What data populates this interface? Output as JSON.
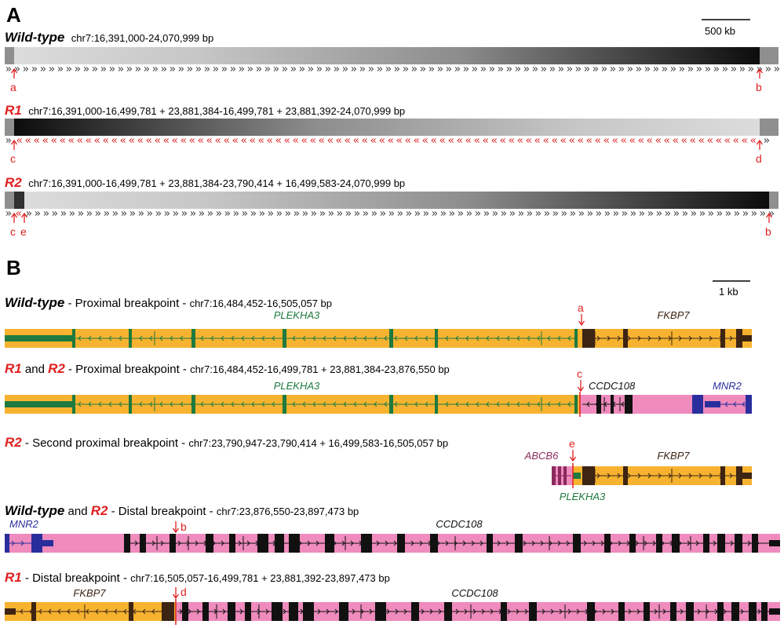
{
  "panel_a": {
    "label": "A",
    "scale_bar": "500 kb",
    "tracks": [
      {
        "name": "Wild-type",
        "coords": "chr7:16,391,000-24,070,999 bp",
        "markers": [
          {
            "letter": "a"
          },
          {
            "letter": "b"
          }
        ]
      },
      {
        "name": "R1",
        "coords": "chr7:16,391,000-16,499,781 + 23,881,384-16,499,781 + 23,881,392-24,070,999 bp",
        "markers": [
          {
            "letter": "c"
          },
          {
            "letter": "d"
          }
        ]
      },
      {
        "name": "R2",
        "coords": "chr7:16,391,000-16,499,781 + 23,881,384-23,790,414 + 16,499,583-24,070,999 bp",
        "markers": [
          {
            "letter": "c"
          },
          {
            "letter": "e"
          },
          {
            "letter": "b"
          }
        ]
      }
    ]
  },
  "panel_b": {
    "label": "B",
    "scale_bar": "1 kb",
    "tracks": [
      {
        "title_parts": [
          {
            "text": "Wild-type",
            "style": "bold-italic"
          },
          {
            "text": " - Proximal breakpoint - ",
            "style": "plain"
          },
          {
            "text": "chr7:16,484,452-16,505,057 bp",
            "style": "small"
          }
        ],
        "gene_labels": [
          "PLEKHA3",
          "FKBP7"
        ],
        "breakpoints": [
          "a"
        ]
      },
      {
        "title_parts": [
          {
            "text": "R1",
            "style": "red-bold-italic"
          },
          {
            "text": " and ",
            "style": "plain"
          },
          {
            "text": "R2",
            "style": "red-bold-italic"
          },
          {
            "text": " - Proximal breakpoint - ",
            "style": "plain"
          },
          {
            "text": "chr7:16,484,452-16,499,781 + 23,881,384-23,876,550 bp",
            "style": "small"
          }
        ],
        "gene_labels": [
          "PLEKHA3",
          "CCDC108",
          "MNR2"
        ],
        "breakpoints": [
          "c"
        ]
      },
      {
        "title_parts": [
          {
            "text": "R2",
            "style": "red-bold-italic"
          },
          {
            "text": " - Second proximal breakpoint - ",
            "style": "plain"
          },
          {
            "text": "chr7:23,790,947-23,790,414 + 16,499,583-16,505,057 bp",
            "style": "small"
          }
        ],
        "gene_labels": [
          "ABCB6",
          "FKBP7",
          "PLEKHA3"
        ],
        "breakpoints": [
          "e"
        ]
      },
      {
        "title_parts": [
          {
            "text": "Wild-type",
            "style": "bold-italic"
          },
          {
            "text": " and ",
            "style": "plain"
          },
          {
            "text": "R2",
            "style": "red-bold-italic"
          },
          {
            "text": " - Distal breakpoint - ",
            "style": "plain"
          },
          {
            "text": "chr7:23,876,550-23,897,473 bp",
            "style": "small"
          }
        ],
        "gene_labels": [
          "MNR2",
          "CCDC108"
        ],
        "breakpoints": [
          "b"
        ]
      },
      {
        "title_parts": [
          {
            "text": "R1",
            "style": "red-bold-italic"
          },
          {
            "text": " - Distal breakpoint - ",
            "style": "plain"
          },
          {
            "text": "chr7:16,505,057-16,499,781 + 23,881,392-23,897,473 bp",
            "style": "small"
          }
        ],
        "gene_labels": [
          "FKBP7",
          "CCDC108"
        ],
        "breakpoints": [
          "d"
        ]
      }
    ]
  },
  "colors": {
    "breakpoint_red": "#e02020",
    "plekha3": "#1e7a3e",
    "fkbp7": "#3d2413",
    "ccdc108": "#111111",
    "mnr2": "#2a2e9c",
    "abcb6": "#8a2a5e",
    "intron_orange": "#f7b330",
    "intron_pink": "#ef8bbd"
  }
}
